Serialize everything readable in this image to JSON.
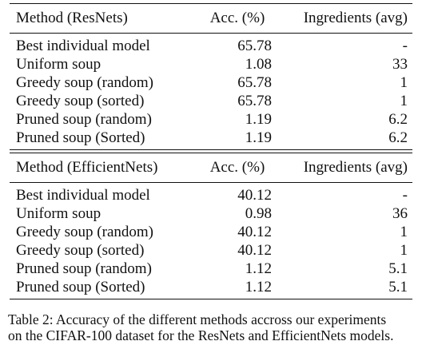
{
  "table": {
    "sections": [
      {
        "headers": [
          "Method (ResNets)",
          "Acc. (%)",
          "Ingredients (avg)"
        ],
        "rows": [
          [
            "Best individual model",
            "65.78",
            "-"
          ],
          [
            "Uniform soup",
            "1.08",
            "33"
          ],
          [
            "Greedy soup (random)",
            "65.78",
            "1"
          ],
          [
            "Greedy soup (sorted)",
            "65.78",
            "1"
          ],
          [
            "Pruned soup (random)",
            "1.19",
            "6.2"
          ],
          [
            "Pruned soup (Sorted)",
            "1.19",
            "6.2"
          ]
        ]
      },
      {
        "headers": [
          "Method (EfficientNets)",
          "Acc. (%)",
          "Ingredients (avg)"
        ],
        "rows": [
          [
            "Best individual model",
            "40.12",
            "-"
          ],
          [
            "Uniform soup",
            "0.98",
            "36"
          ],
          [
            "Greedy soup (random)",
            "40.12",
            "1"
          ],
          [
            "Greedy soup (sorted)",
            "40.12",
            "1"
          ],
          [
            "Pruned soup (random)",
            "1.12",
            "5.1"
          ],
          [
            "Pruned soup (Sorted)",
            "1.12",
            "5.1"
          ]
        ]
      }
    ]
  },
  "caption": {
    "line1": "Table 2: Accuracy of the different methods accross our experiments",
    "line2": "on the CIFAR-100 dataset for the ResNets and EfficientNets models."
  }
}
